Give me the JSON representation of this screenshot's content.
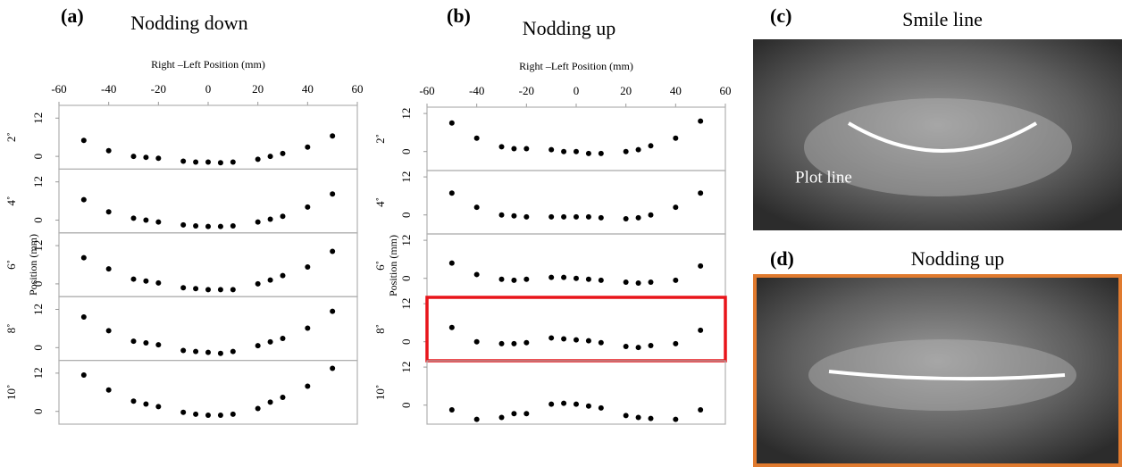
{
  "chart_data": [
    {
      "type": "scatter",
      "label": "(a)",
      "title": "Nodding down",
      "xlabel": "Right –Left Position (mm)",
      "ylabel": "Position (mm)",
      "xlim": [
        -60,
        60
      ],
      "xticks": [
        -60,
        -40,
        -20,
        0,
        20,
        40,
        60
      ],
      "ylim": [
        -4,
        16
      ],
      "yticks": [
        0,
        12
      ],
      "color": "#000000",
      "x": [
        -50,
        -40,
        -30,
        -25,
        -20,
        -10,
        -5,
        0,
        5,
        10,
        20,
        25,
        30,
        40,
        50
      ],
      "panels": [
        {
          "name": "2˚",
          "values": [
            5.0,
            1.8,
            0,
            -0.3,
            -0.6,
            -1.5,
            -1.8,
            -1.8,
            -2,
            -1.8,
            -0.9,
            0,
            0.9,
            2.9,
            6.4
          ]
        },
        {
          "name": "4˚",
          "values": [
            6.4,
            2.6,
            0.6,
            0,
            -0.6,
            -1.5,
            -1.8,
            -2,
            -2,
            -1.8,
            -0.6,
            0.3,
            1.2,
            4.1,
            8.2
          ]
        },
        {
          "name": "6˚",
          "values": [
            8.2,
            4.7,
            1.5,
            0.9,
            0.3,
            -1.2,
            -1.5,
            -1.8,
            -1.8,
            -1.8,
            0,
            1.2,
            2.6,
            5.3,
            10.2
          ]
        },
        {
          "name": "8˚",
          "values": [
            9.6,
            5.3,
            2.0,
            1.5,
            0.9,
            -0.9,
            -1.2,
            -1.5,
            -1.8,
            -1.2,
            0.6,
            1.8,
            2.9,
            6.1,
            11.4
          ]
        },
        {
          "name": "10˚",
          "values": [
            11.4,
            6.7,
            3.2,
            2.3,
            1.5,
            -0.3,
            -0.9,
            -1.2,
            -1.2,
            -0.9,
            0.9,
            2.9,
            4.4,
            7.9,
            13.5
          ]
        }
      ]
    },
    {
      "type": "scatter",
      "label": "(b)",
      "title": "Nodding up",
      "xlabel": "Right –Left Position (mm)",
      "ylabel": "Position (mm)",
      "xlim": [
        -60,
        60
      ],
      "xticks": [
        -60,
        -40,
        -20,
        0,
        20,
        40,
        60
      ],
      "ylim": [
        -6,
        14
      ],
      "yticks": [
        0,
        12
      ],
      "color": "#000000",
      "highlight_color": "#e8141a",
      "x": [
        -50,
        -40,
        -30,
        -25,
        -20,
        -10,
        -5,
        0,
        5,
        10,
        20,
        25,
        30,
        40,
        50
      ],
      "panels": [
        {
          "name": "2˚",
          "values": [
            9,
            4.2,
            1.5,
            0.9,
            0.9,
            0.6,
            0,
            0,
            -0.6,
            -0.6,
            0,
            0.6,
            1.8,
            4.2,
            9.6
          ]
        },
        {
          "name": "4˚",
          "values": [
            6.9,
            2.4,
            0,
            -0.3,
            -0.6,
            -0.6,
            -0.6,
            -0.6,
            -0.6,
            -0.9,
            -1.2,
            -0.9,
            0,
            2.4,
            6.9
          ]
        },
        {
          "name": "6˚",
          "values": [
            4.8,
            1.2,
            -0.3,
            -0.6,
            -0.3,
            0.3,
            0.3,
            0,
            -0.3,
            -0.6,
            -1.2,
            -1.5,
            -1.2,
            -0.6,
            3.9
          ]
        },
        {
          "name": "8˚",
          "highlight": true,
          "values": [
            4.5,
            0,
            -0.6,
            -0.6,
            -0.3,
            1.2,
            0.9,
            0.6,
            0.3,
            -0.3,
            -1.5,
            -1.8,
            -1.2,
            -0.6,
            3.6
          ]
        },
        {
          "name": "10˚",
          "values": [
            -1.5,
            -4.5,
            -3.9,
            -2.7,
            -2.7,
            0.3,
            0.6,
            0.3,
            -0.3,
            -0.9,
            -3.3,
            -3.9,
            -4.2,
            -4.5,
            -1.5
          ]
        }
      ]
    }
  ],
  "images": [
    {
      "label": "(c)",
      "title": "Smile line",
      "annotation": "Plot line"
    },
    {
      "label": "(d)",
      "title": "Nodding up"
    }
  ]
}
